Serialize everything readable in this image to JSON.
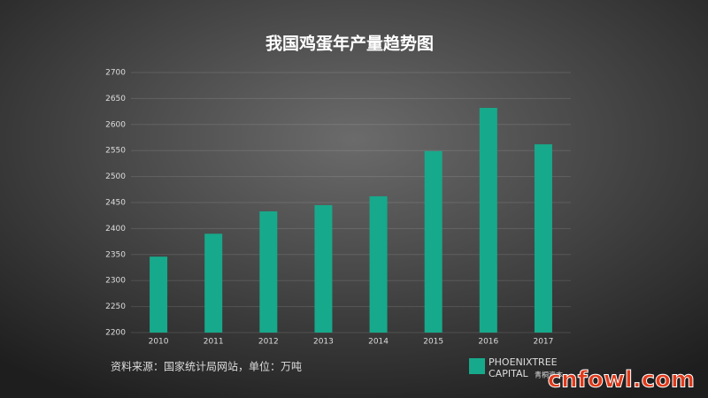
{
  "chart_data": {
    "type": "bar",
    "title": "我国鸡蛋年产量趋势图",
    "categories": [
      "2010",
      "2011",
      "2012",
      "2013",
      "2014",
      "2015",
      "2016",
      "2017"
    ],
    "values": [
      2346,
      2390,
      2433,
      2445,
      2462,
      2549,
      2632,
      2562
    ],
    "color": "#17a98b",
    "ylim": [
      2200,
      2700
    ],
    "yticks": [
      2200,
      2250,
      2300,
      2350,
      2400,
      2450,
      2500,
      2550,
      2600,
      2650,
      2700
    ],
    "grid": true,
    "source": "资料来源：国家统计局网站，单位：万吨"
  },
  "logo": {
    "name": "PHOENIXTREE",
    "subname": "CAPITAL",
    "cn": "青桐资本"
  },
  "watermark": "cnfowl.com"
}
